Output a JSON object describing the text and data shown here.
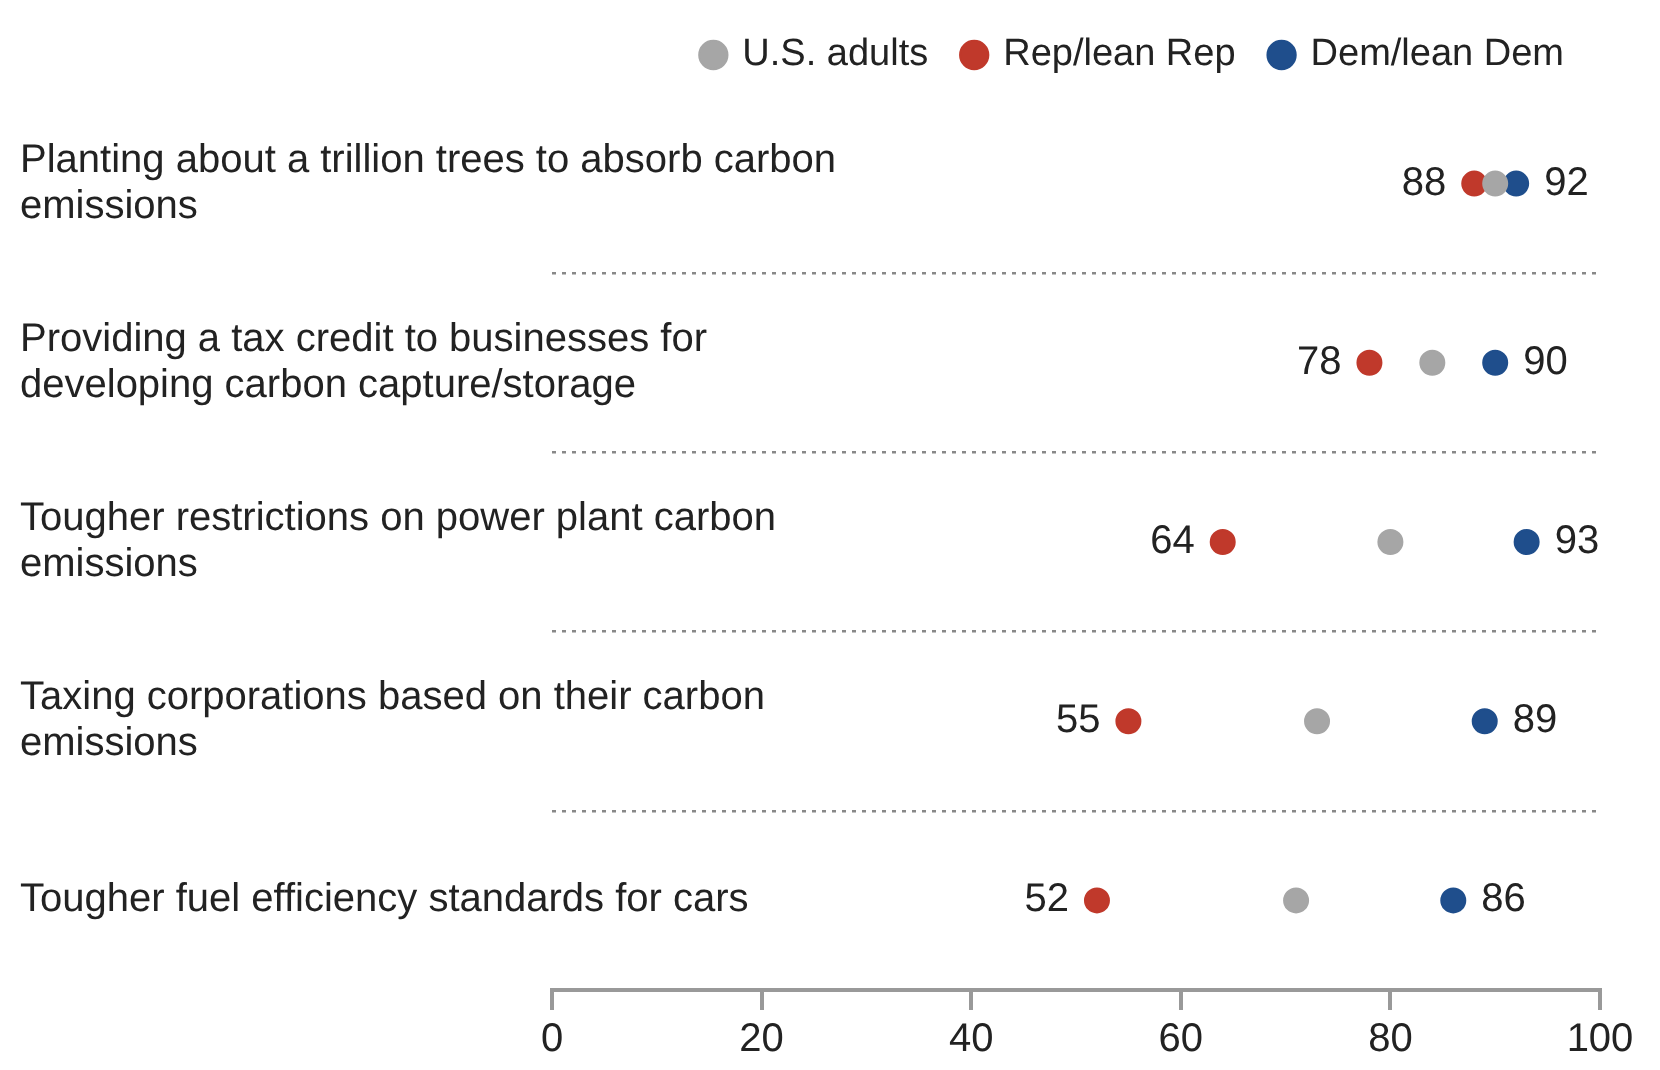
{
  "chart_data": {
    "type": "scatter",
    "orientation": "horizontal",
    "categories": [
      "Planting about a trillion trees to absorb carbon emissions",
      "Providing a tax credit to businesses for developing carbon capture/storage",
      "Tougher restrictions on power plant carbon emissions",
      "Taxing corporations based on their carbon emissions",
      "Tougher fuel efficiency standards for cars"
    ],
    "series": [
      {
        "name": "U.S. adults",
        "color": "#a6a6a6",
        "values": [
          90,
          84,
          80,
          73,
          71
        ]
      },
      {
        "name": "Rep/lean Rep",
        "color": "#c0392b",
        "values": [
          88,
          78,
          64,
          55,
          52
        ],
        "value_labels": [
          "88",
          "78",
          "64",
          "55",
          "52"
        ]
      },
      {
        "name": "Dem/lean Dem",
        "color": "#1f4e8c",
        "values": [
          92,
          90,
          93,
          89,
          86
        ],
        "value_labels": [
          "92",
          "90",
          "93",
          "89",
          "86"
        ]
      }
    ],
    "xlim": [
      0,
      100
    ],
    "xticks": [
      0,
      20,
      40,
      60,
      80,
      100
    ],
    "grid": "y",
    "legend": "top right",
    "marker": "circle"
  }
}
